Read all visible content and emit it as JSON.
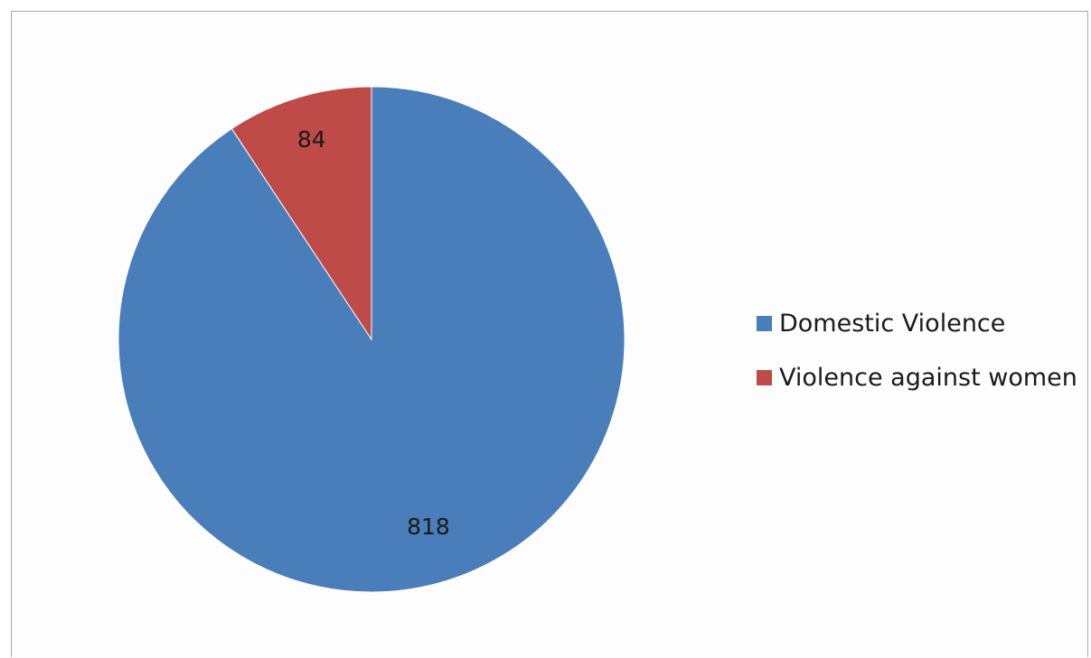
{
  "chart_data": {
    "type": "pie",
    "title": "",
    "categories": [
      "Domestic Violence",
      "Violence against women"
    ],
    "values": [
      818,
      84
    ],
    "colors": [
      "#4a7ebb",
      "#be4b48"
    ],
    "data_labels": [
      "818",
      "84"
    ],
    "start_angle_deg": 0,
    "direction": "clockwise",
    "legend_position": "right"
  }
}
